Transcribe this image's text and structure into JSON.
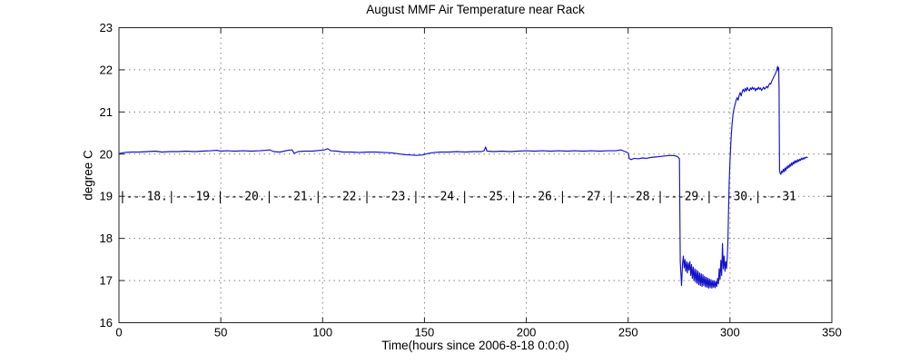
{
  "title": "August MMF Air Temperature near Rack",
  "annotation": {
    "day_markers": [
      "|---18.",
      "|---19.",
      "|---20.",
      "|---21.",
      "|---22.",
      "|---23.",
      "|---24.",
      "|---25.",
      "|---26.",
      "|---27.",
      "|---28.",
      "|---29.",
      "|---30.",
      "|---31"
    ],
    "marker_y_value": 19,
    "hours_per_marker": 24
  },
  "colors": {
    "line": "#1414c8",
    "grid": "#777777",
    "axis": "#222222",
    "text": "#000000",
    "background": "#ffffff"
  },
  "chart_data": {
    "type": "line",
    "title": "August MMF Air Temperature near Rack",
    "xlabel": "Time(hours since 2006-8-18 0:0:0)",
    "ylabel": "degree C",
    "xlim": [
      0,
      350
    ],
    "ylim": [
      16,
      23
    ],
    "x_ticks": [
      0,
      50,
      100,
      150,
      200,
      250,
      300,
      350
    ],
    "y_ticks": [
      16,
      17,
      18,
      19,
      20,
      21,
      22,
      23
    ],
    "grid": true,
    "legend": false,
    "series": [
      {
        "name": "air temperature near rack",
        "color": "#1414c8",
        "points": [
          [
            0.5,
            20.02
          ],
          [
            3,
            20.04
          ],
          [
            6,
            20.05
          ],
          [
            10,
            20.05
          ],
          [
            14,
            20.06
          ],
          [
            18,
            20.07
          ],
          [
            21,
            20.05
          ],
          [
            25,
            20.06
          ],
          [
            29,
            20.06
          ],
          [
            33,
            20.07
          ],
          [
            37,
            20.06
          ],
          [
            41,
            20.07
          ],
          [
            45,
            20.08
          ],
          [
            48,
            20.09
          ],
          [
            50,
            20.07
          ],
          [
            53,
            20.08
          ],
          [
            57,
            20.07
          ],
          [
            61,
            20.08
          ],
          [
            65,
            20.07
          ],
          [
            69,
            20.08
          ],
          [
            72,
            20.09
          ],
          [
            74,
            20.1
          ],
          [
            76,
            20.06
          ],
          [
            79,
            20.05
          ],
          [
            83,
            20.09
          ],
          [
            85,
            20.1
          ],
          [
            86,
            20.02
          ],
          [
            88,
            20.06
          ],
          [
            91,
            20.07
          ],
          [
            95,
            20.07
          ],
          [
            99,
            20.09
          ],
          [
            101,
            20.1
          ],
          [
            102.5,
            20.13
          ],
          [
            104,
            20.08
          ],
          [
            107,
            20.07
          ],
          [
            110,
            20.05
          ],
          [
            114,
            20.05
          ],
          [
            118,
            20.04
          ],
          [
            122,
            20.05
          ],
          [
            126,
            20.05
          ],
          [
            130,
            20.04
          ],
          [
            134,
            20.03
          ],
          [
            137,
            20.01
          ],
          [
            140,
            19.99
          ],
          [
            143,
            19.98
          ],
          [
            146,
            19.97
          ],
          [
            149,
            19.98
          ],
          [
            152,
            20.02
          ],
          [
            155,
            20.04
          ],
          [
            158,
            20.05
          ],
          [
            162,
            20.05
          ],
          [
            166,
            20.06
          ],
          [
            170,
            20.05
          ],
          [
            174,
            20.06
          ],
          [
            178,
            20.06
          ],
          [
            179.3,
            20.08
          ],
          [
            180,
            20.17
          ],
          [
            180.7,
            20.07
          ],
          [
            184,
            20.06
          ],
          [
            188,
            20.07
          ],
          [
            192,
            20.06
          ],
          [
            196,
            20.07
          ],
          [
            200,
            20.08
          ],
          [
            204,
            20.07
          ],
          [
            208,
            20.08
          ],
          [
            212,
            20.07
          ],
          [
            216,
            20.08
          ],
          [
            220,
            20.07
          ],
          [
            224,
            20.08
          ],
          [
            228,
            20.07
          ],
          [
            232,
            20.08
          ],
          [
            236,
            20.07
          ],
          [
            240,
            20.08
          ],
          [
            244,
            20.08
          ],
          [
            246.5,
            20.1
          ],
          [
            248.5,
            20.06
          ],
          [
            250,
            20.03
          ],
          [
            250.6,
            19.89
          ],
          [
            251.5,
            19.87
          ],
          [
            253,
            19.9
          ],
          [
            255,
            19.89
          ],
          [
            257,
            19.91
          ],
          [
            259,
            19.9
          ],
          [
            261,
            19.92
          ],
          [
            263,
            19.93
          ],
          [
            265,
            19.94
          ],
          [
            267,
            19.95
          ],
          [
            269,
            19.96
          ],
          [
            271,
            19.97
          ],
          [
            273,
            19.96
          ],
          [
            274.3,
            19.94
          ],
          [
            275.2,
            19.89
          ],
          [
            275.6,
            17.45
          ],
          [
            276.2,
            16.88
          ],
          [
            276.7,
            17.4
          ],
          [
            277.1,
            17.58
          ],
          [
            277.5,
            17.3
          ],
          [
            277.9,
            17.5
          ],
          [
            278.3,
            17.22
          ],
          [
            278.7,
            17.45
          ],
          [
            279.1,
            17.18
          ],
          [
            279.5,
            17.42
          ],
          [
            279.9,
            17.25
          ],
          [
            280.3,
            17.45
          ],
          [
            280.7,
            17.12
          ],
          [
            281.1,
            17.38
          ],
          [
            281.5,
            17.05
          ],
          [
            281.9,
            17.32
          ],
          [
            282.3,
            17.0
          ],
          [
            282.7,
            17.28
          ],
          [
            283.1,
            16.96
          ],
          [
            283.5,
            17.25
          ],
          [
            283.9,
            16.93
          ],
          [
            284.3,
            17.22
          ],
          [
            284.7,
            16.9
          ],
          [
            285.1,
            17.18
          ],
          [
            285.5,
            16.88
          ],
          [
            285.9,
            17.16
          ],
          [
            286.3,
            16.86
          ],
          [
            286.7,
            17.14
          ],
          [
            287.1,
            16.88
          ],
          [
            287.5,
            17.1
          ],
          [
            287.9,
            16.85
          ],
          [
            288.3,
            17.08
          ],
          [
            288.7,
            16.84
          ],
          [
            289.1,
            17.06
          ],
          [
            289.5,
            16.82
          ],
          [
            289.9,
            17.04
          ],
          [
            290.3,
            16.83
          ],
          [
            290.7,
            17.02
          ],
          [
            291.1,
            16.82
          ],
          [
            291.5,
            17.0
          ],
          [
            291.9,
            16.84
          ],
          [
            292.3,
            16.99
          ],
          [
            292.7,
            16.83
          ],
          [
            293.1,
            16.98
          ],
          [
            293.5,
            16.86
          ],
          [
            293.9,
            17.05
          ],
          [
            294.3,
            16.92
          ],
          [
            294.7,
            17.28
          ],
          [
            295.1,
            17.02
          ],
          [
            295.5,
            17.48
          ],
          [
            295.9,
            17.12
          ],
          [
            296.3,
            17.88
          ],
          [
            296.7,
            17.28
          ],
          [
            297.1,
            17.58
          ],
          [
            297.5,
            17.22
          ],
          [
            297.9,
            17.45
          ],
          [
            298.3,
            17.28
          ],
          [
            298.7,
            17.55
          ],
          [
            299.0,
            17.95
          ],
          [
            299.3,
            18.7
          ],
          [
            299.6,
            19.35
          ],
          [
            300.0,
            19.85
          ],
          [
            300.5,
            20.35
          ],
          [
            301,
            20.7
          ],
          [
            301.5,
            20.95
          ],
          [
            302,
            21.08
          ],
          [
            302.5,
            21.18
          ],
          [
            303,
            21.28
          ],
          [
            303.5,
            21.34
          ],
          [
            304,
            21.28
          ],
          [
            304.5,
            21.4
          ],
          [
            305,
            21.46
          ],
          [
            305.5,
            21.38
          ],
          [
            306,
            21.48
          ],
          [
            306.5,
            21.54
          ],
          [
            307,
            21.48
          ],
          [
            307.5,
            21.56
          ],
          [
            308,
            21.5
          ],
          [
            308.5,
            21.58
          ],
          [
            309,
            21.53
          ],
          [
            309.5,
            21.5
          ],
          [
            310,
            21.57
          ],
          [
            310.5,
            21.53
          ],
          [
            311,
            21.59
          ],
          [
            311.5,
            21.54
          ],
          [
            312,
            21.57
          ],
          [
            312.5,
            21.5
          ],
          [
            313,
            21.56
          ],
          [
            313.5,
            21.53
          ],
          [
            314,
            21.59
          ],
          [
            314.5,
            21.54
          ],
          [
            315,
            21.57
          ],
          [
            315.5,
            21.51
          ],
          [
            316,
            21.55
          ],
          [
            316.5,
            21.59
          ],
          [
            317,
            21.54
          ],
          [
            317.5,
            21.57
          ],
          [
            318,
            21.61
          ],
          [
            318.5,
            21.57
          ],
          [
            319,
            21.63
          ],
          [
            319.5,
            21.68
          ],
          [
            320,
            21.66
          ],
          [
            320.5,
            21.73
          ],
          [
            321,
            21.78
          ],
          [
            321.5,
            21.83
          ],
          [
            322,
            21.88
          ],
          [
            322.5,
            21.93
          ],
          [
            323,
            22.0
          ],
          [
            323.4,
            22.08
          ],
          [
            323.7,
            21.97
          ],
          [
            323.9,
            22.05
          ],
          [
            324.1,
            21.55
          ],
          [
            324.3,
            19.62
          ],
          [
            324.6,
            19.55
          ],
          [
            325,
            19.52
          ],
          [
            325.4,
            19.6
          ],
          [
            325.8,
            19.56
          ],
          [
            326.2,
            19.64
          ],
          [
            326.6,
            19.58
          ],
          [
            327,
            19.67
          ],
          [
            327.4,
            19.61
          ],
          [
            327.8,
            19.7
          ],
          [
            328.2,
            19.66
          ],
          [
            328.6,
            19.73
          ],
          [
            329,
            19.68
          ],
          [
            329.4,
            19.76
          ],
          [
            329.8,
            19.71
          ],
          [
            330.2,
            19.79
          ],
          [
            330.6,
            19.74
          ],
          [
            331,
            19.81
          ],
          [
            331.4,
            19.77
          ],
          [
            331.8,
            19.84
          ],
          [
            332.2,
            19.79
          ],
          [
            332.6,
            19.85
          ],
          [
            333,
            19.81
          ],
          [
            333.4,
            19.87
          ],
          [
            333.8,
            19.83
          ],
          [
            334.2,
            19.88
          ],
          [
            334.6,
            19.85
          ],
          [
            335,
            19.9
          ],
          [
            335.4,
            19.87
          ],
          [
            335.8,
            19.91
          ],
          [
            336.2,
            19.88
          ],
          [
            336.6,
            19.92
          ],
          [
            337,
            19.9
          ],
          [
            337.5,
            19.93
          ],
          [
            338,
            19.92
          ]
        ]
      }
    ]
  }
}
